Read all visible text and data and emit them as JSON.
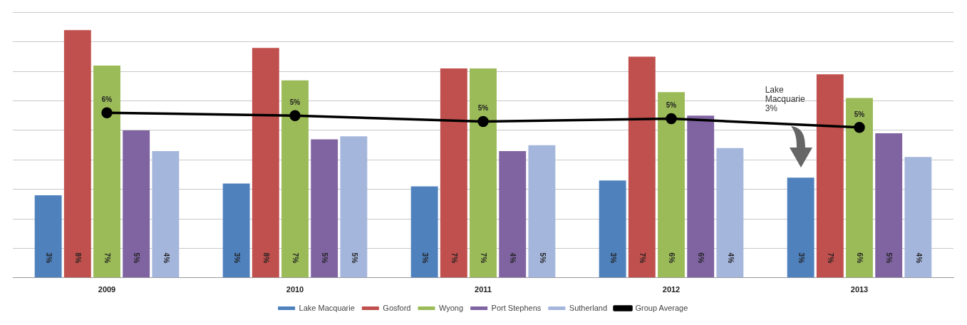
{
  "chart_data": {
    "type": "bar",
    "categories": [
      "2009",
      "2010",
      "2011",
      "2012",
      "2013"
    ],
    "series": [
      {
        "name": "Lake Macquarie",
        "color": "#4f81bd",
        "values": [
          2.8,
          3.2,
          3.1,
          3.3,
          3.4
        ],
        "value_labels": [
          "3%",
          "3%",
          "3%",
          "3%",
          "3%"
        ]
      },
      {
        "name": "Gosford",
        "color": "#c0504d",
        "values": [
          8.4,
          7.8,
          7.1,
          7.5,
          6.9
        ],
        "value_labels": [
          "8%",
          "8%",
          "7%",
          "7%",
          "7%"
        ]
      },
      {
        "name": "Wyong",
        "color": "#9bbb59",
        "values": [
          7.2,
          6.7,
          7.1,
          6.3,
          6.1
        ],
        "value_labels": [
          "7%",
          "7%",
          "7%",
          "6%",
          "6%"
        ]
      },
      {
        "name": "Port Stephens",
        "color": "#8064a2",
        "values": [
          5.0,
          4.7,
          4.3,
          5.5,
          4.9
        ],
        "value_labels": [
          "5%",
          "5%",
          "4%",
          "6%",
          "5%"
        ]
      },
      {
        "name": "Sutherland",
        "color": "#a5b6dc",
        "values": [
          4.3,
          4.8,
          4.5,
          4.4,
          4.1
        ],
        "value_labels": [
          "4%",
          "5%",
          "5%",
          "4%",
          "4%"
        ]
      },
      {
        "name": "Group Average",
        "type": "line",
        "color": "#000000",
        "marker": "circle",
        "values": [
          5.6,
          5.5,
          5.3,
          5.4,
          5.1
        ],
        "value_labels": [
          "6%",
          "5%",
          "5%",
          "5%",
          "5%"
        ]
      }
    ],
    "ylim": [
      0,
      9
    ],
    "yticks": [
      {
        "value": 0,
        "label": null
      },
      {
        "value": 1,
        "label": null
      },
      {
        "value": 2,
        "label": null
      },
      {
        "value": 3,
        "label": null
      },
      {
        "value": 4,
        "label": null
      },
      {
        "value": 5,
        "label": null
      },
      {
        "value": 6,
        "label": null
      },
      {
        "value": 7,
        "label": null
      },
      {
        "value": 8,
        "label": null
      },
      {
        "value": 9,
        "label": null
      }
    ],
    "tick_labels": "x",
    "grid": "y",
    "legend": "bottom",
    "annotations": [
      "Lake Macquarie 3%"
    ]
  }
}
